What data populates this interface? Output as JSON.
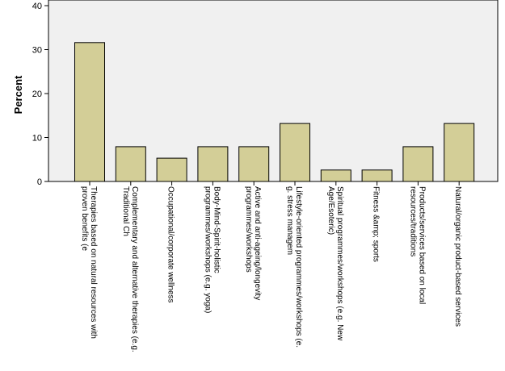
{
  "chart_data": {
    "type": "bar",
    "title": "",
    "xlabel": "",
    "ylabel": "Percent",
    "ylim": [
      0,
      40
    ],
    "yticks": [
      0,
      10,
      20,
      30,
      40
    ],
    "grid": false,
    "bar_color": "#d3ce97",
    "plot_background": "#f0f0f0",
    "categories": [
      [
        "Therapies based on natural resources with",
        "proven benefits (e"
      ],
      [
        "Complementary and alternative therapies (e.g.",
        "Traditional Ch"
      ],
      [
        "Occupational/corporate wellness"
      ],
      [
        "Body-Mind-Spirit-holistic",
        "programmes/workshops (e.g. yoga)"
      ],
      [
        "Active and anti-ageing/longevity",
        "programmes/workshops"
      ],
      [
        "Lifestyle-oriented programmes/workshops (e.",
        "g. stress managem"
      ],
      [
        "Spiritual programmes/workshops (e.g. New",
        "Age/Esoteric)"
      ],
      [
        "Fitness &amp; sports"
      ],
      [
        "Products/services based on local",
        "resources/traditions"
      ],
      [
        "Natural/organic product-based services"
      ]
    ],
    "values": [
      31.6,
      7.9,
      5.3,
      7.9,
      7.9,
      13.2,
      2.6,
      2.6,
      7.9,
      13.2
    ]
  }
}
